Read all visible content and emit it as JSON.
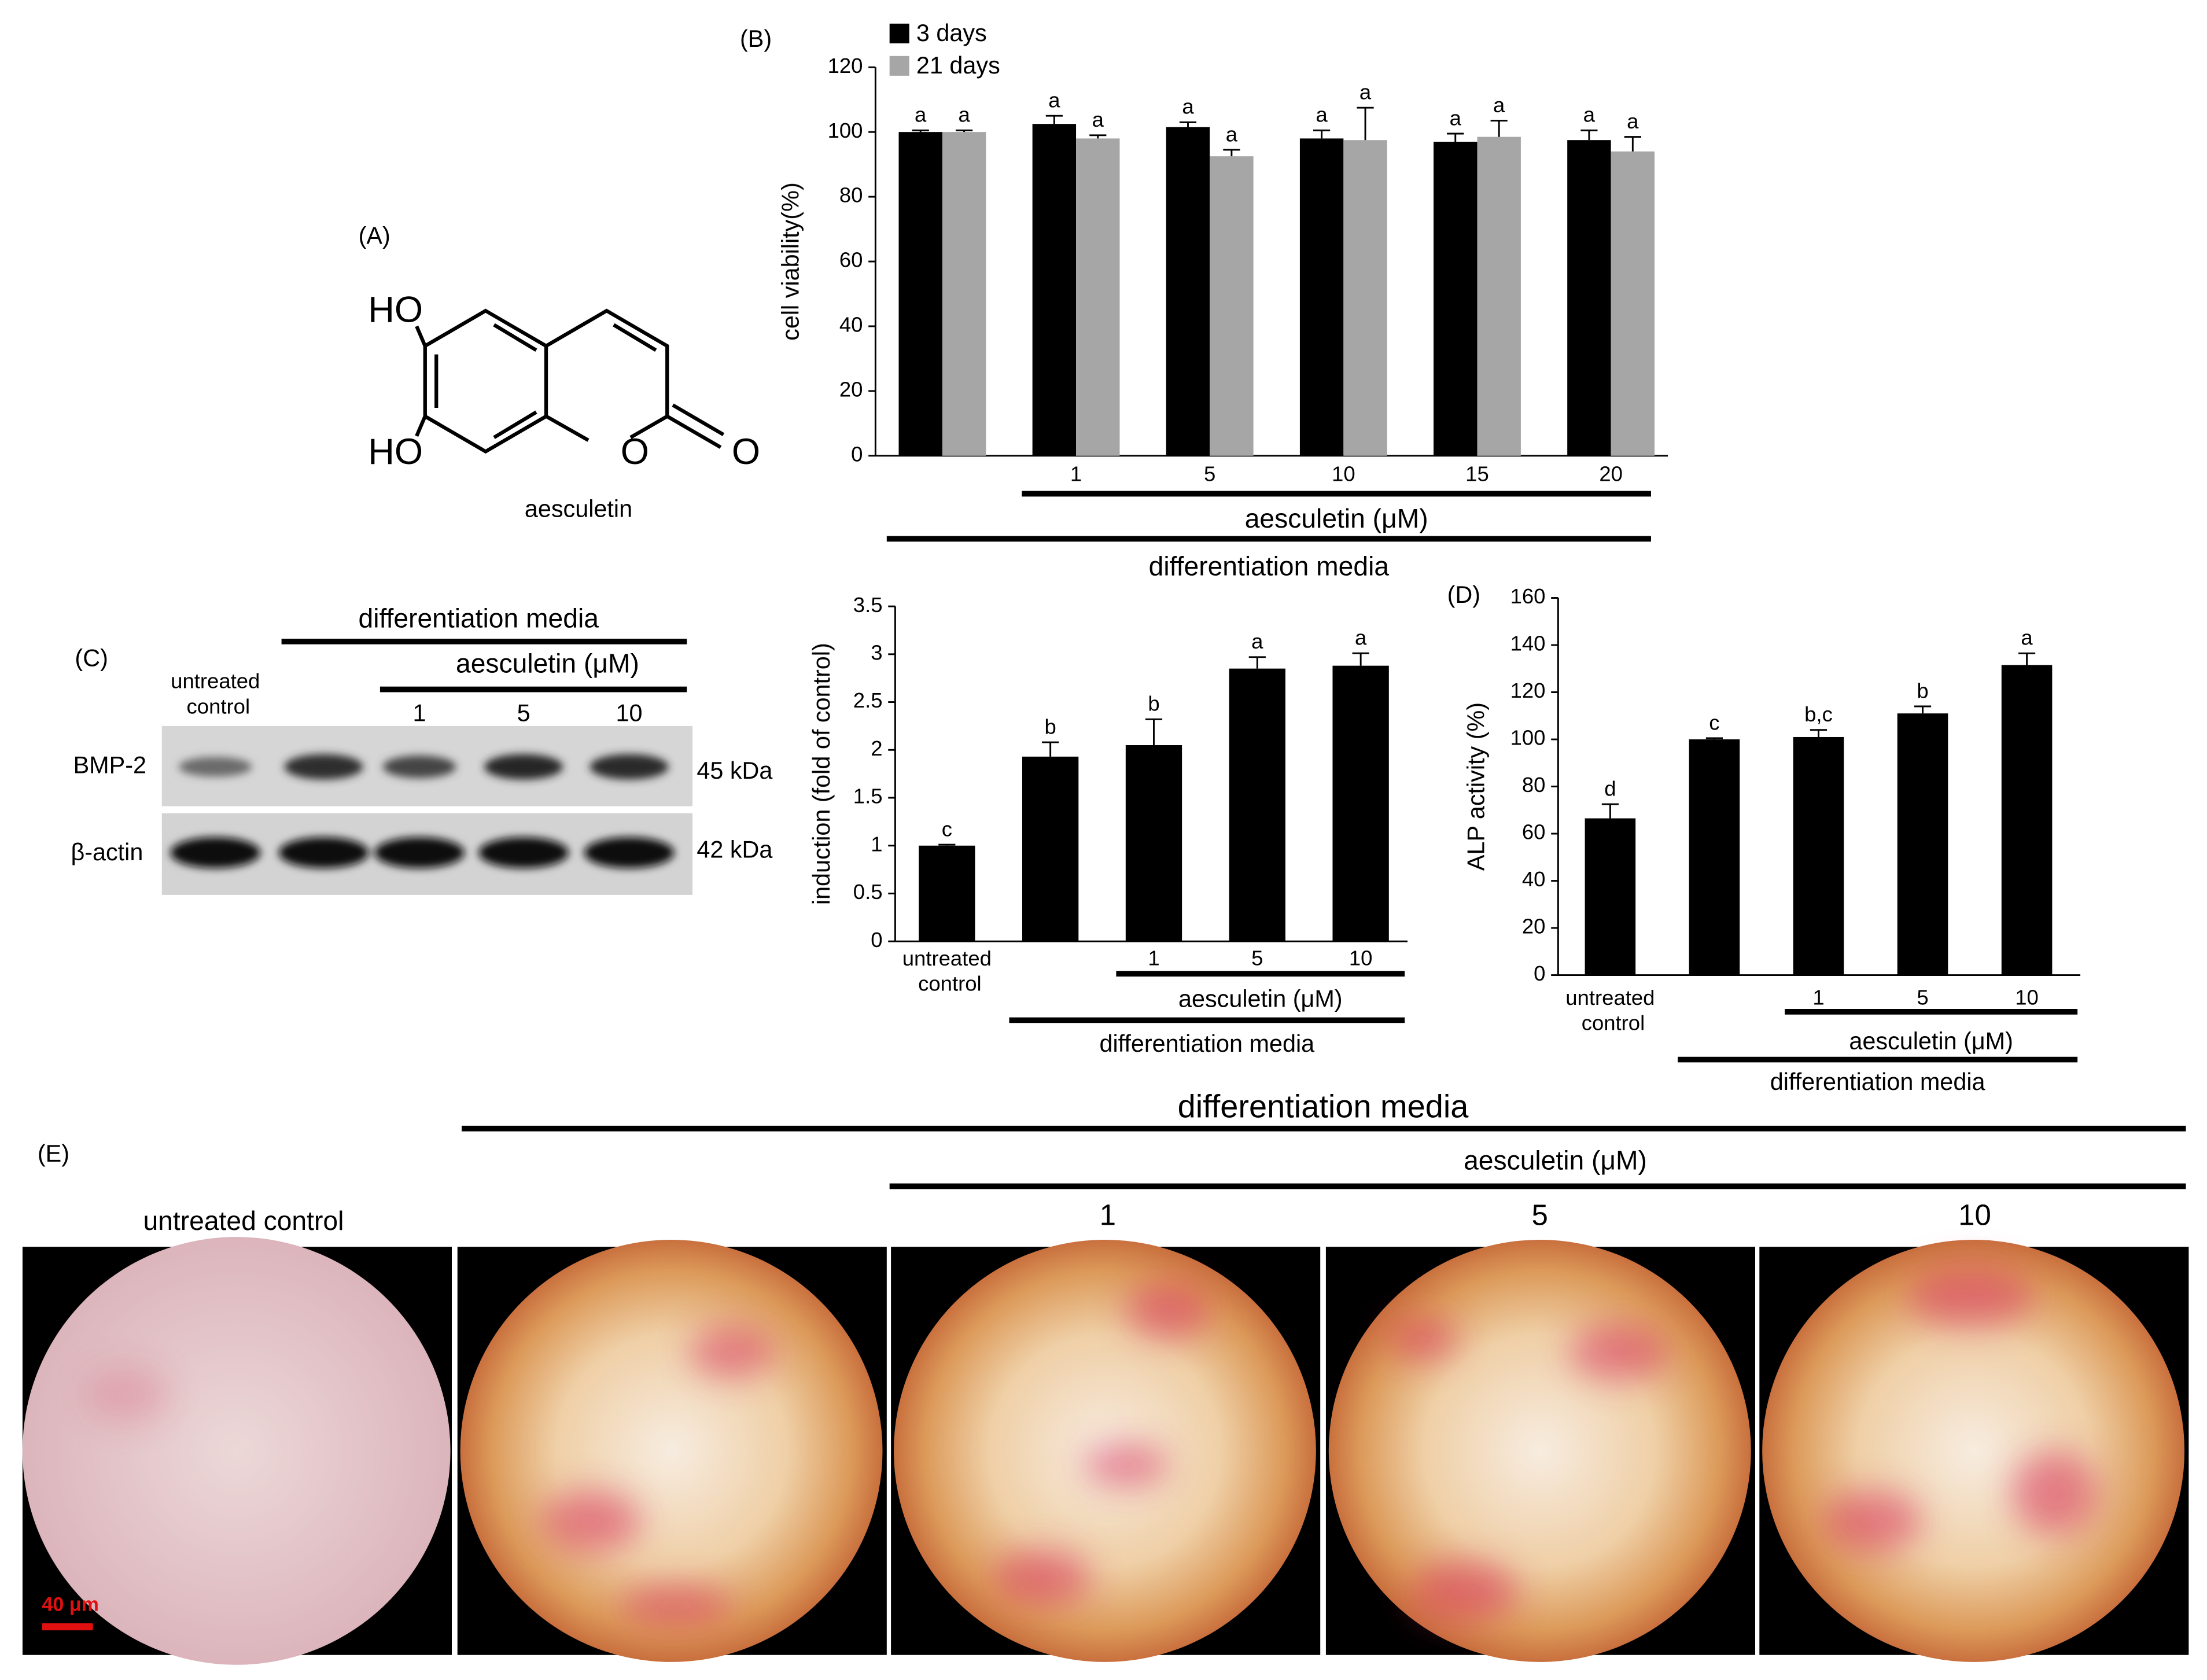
{
  "chart_data": [
    {
      "type": "bar",
      "label": "(B)",
      "ylabel": "cell viability(%)",
      "categories": [
        null,
        "1",
        "5",
        "10",
        "15",
        "20"
      ],
      "series": [
        {
          "name": "3 days",
          "color": "#000000",
          "values": [
            100,
            102.5,
            101.5,
            98,
            97,
            97.5
          ],
          "errors": [
            0.5,
            2.5,
            1.5,
            2.5,
            2.5,
            3
          ],
          "letters": [
            "a",
            "a",
            "a",
            "a",
            "a",
            "a"
          ]
        },
        {
          "name": "21 days",
          "color": "#a6a6a6",
          "values": [
            100,
            98,
            92.5,
            97.5,
            98.5,
            94
          ],
          "errors": [
            0.5,
            1,
            2,
            10,
            5,
            4.5
          ],
          "letters": [
            "a",
            "a",
            "a",
            "a",
            "a",
            "a"
          ]
        }
      ],
      "ylim": [
        0,
        120
      ],
      "yticks": [
        0,
        20,
        40,
        60,
        80,
        100,
        120
      ],
      "brackets": [
        "aesculetin (μM)",
        "differentiation media"
      ]
    },
    {
      "type": "bar",
      "ylabel": "induction (fold of control)",
      "categories": [
        "untreated control",
        null,
        "1",
        "5",
        "10"
      ],
      "series": [
        {
          "color": "#000000",
          "values": [
            1,
            1.93,
            2.05,
            2.85,
            2.88
          ],
          "errors": [
            0.01,
            0.15,
            0.27,
            0.12,
            0.13
          ],
          "letters": [
            "c",
            "b",
            "b",
            "a",
            "a"
          ]
        }
      ],
      "ylim": [
        0,
        3.5
      ],
      "yticks": [
        0,
        0.5,
        1,
        1.5,
        2,
        2.5,
        3,
        3.5
      ],
      "brackets": [
        "aesculetin (μM)",
        "differentiation media"
      ]
    },
    {
      "type": "bar",
      "label": "(D)",
      "ylabel": "ALP activity (%)",
      "categories": [
        "untreated control",
        null,
        "1",
        "5",
        "10"
      ],
      "series": [
        {
          "color": "#000000",
          "values": [
            66.5,
            100,
            101,
            111,
            131.5
          ],
          "errors": [
            6,
            0.5,
            3,
            3,
            5
          ],
          "letters": [
            "d",
            "c",
            "b,c",
            "b",
            "a"
          ]
        }
      ],
      "ylim": [
        0,
        160
      ],
      "yticks": [
        0,
        20,
        40,
        60,
        80,
        100,
        120,
        140,
        160
      ],
      "brackets": [
        "aesculetin (μM)",
        "differentiation media"
      ]
    }
  ],
  "structure": {
    "label": "(A)",
    "name": "aesculetin",
    "atoms": [
      "HO",
      "HO",
      "O",
      "O"
    ]
  },
  "blot": {
    "label": "(C)",
    "media": "differentiation media",
    "treatment": "aesculetin (μM)",
    "lanes": [
      "untreated control",
      "1",
      "5",
      "10"
    ],
    "proteins": [
      "BMP-2",
      "β-actin"
    ],
    "sizes": [
      "45 kDa",
      "42 kDa"
    ]
  },
  "staining": {
    "label": "(E)",
    "media": "differentiation media",
    "treatment": "aesculetin (μM)",
    "columns": [
      "untreated control",
      "1",
      "5",
      "10"
    ],
    "scale_bar": "40 μm"
  }
}
